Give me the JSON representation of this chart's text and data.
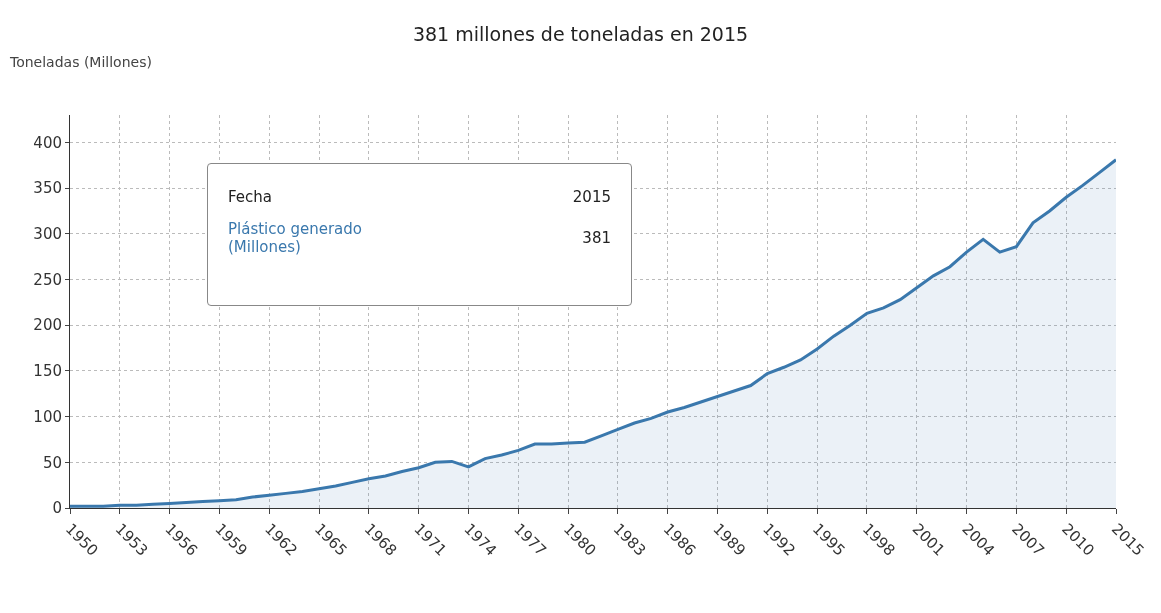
{
  "chart_data": {
    "type": "area",
    "title": "381 millones de toneladas en 2015",
    "ylabel": "Toneladas (Millones)",
    "categories": [
      "1950",
      null,
      null,
      "1953",
      null,
      null,
      "1956",
      null,
      null,
      "1959",
      null,
      null,
      "1962",
      null,
      null,
      "1965",
      null,
      null,
      "1968",
      null,
      null,
      "1971",
      null,
      null,
      "1974",
      null,
      null,
      "1977",
      null,
      null,
      "1980",
      null,
      null,
      "1983",
      null,
      null,
      "1986",
      null,
      null,
      "1989",
      null,
      null,
      "1992",
      null,
      null,
      "1995",
      null,
      null,
      "1998",
      null,
      null,
      "2001",
      null,
      null,
      "2004",
      null,
      null,
      "2007",
      null,
      null,
      "2010",
      null,
      null,
      "2015"
    ],
    "series": [
      {
        "name": "Plástico generado (Millones)",
        "color": "#3a78ad",
        "values": [
          2,
          2,
          2,
          3,
          3,
          4,
          5,
          6,
          7,
          8,
          9,
          12,
          14,
          16,
          18,
          21,
          24,
          28,
          32,
          35,
          40,
          44,
          50,
          51,
          45,
          54,
          58,
          63,
          70,
          70,
          71,
          72,
          79,
          86,
          93,
          98,
          105,
          110,
          116,
          122,
          128,
          134,
          147,
          154,
          162,
          174,
          188,
          200,
          213,
          219,
          228,
          241,
          254,
          264,
          280,
          294,
          280,
          286,
          312,
          325,
          340,
          353,
          367,
          381
        ]
      }
    ],
    "annotations": [
      "Fecha",
      "2015",
      "381"
    ],
    "ylim": [
      0,
      430
    ],
    "yticks": [
      0,
      50,
      100,
      150,
      200,
      250,
      300,
      350,
      400
    ],
    "grid": true,
    "legend": false
  }
}
